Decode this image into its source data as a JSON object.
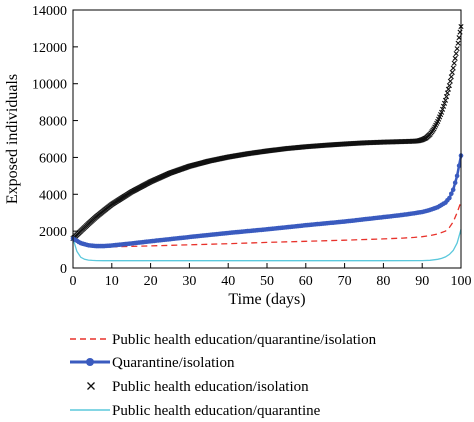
{
  "chart_data": {
    "type": "line",
    "title": "",
    "xlabel": "Time (days)",
    "ylabel": "Exposed individuals",
    "xlim": [
      0,
      100
    ],
    "ylim": [
      0,
      14000
    ],
    "x_ticks": [
      0,
      10,
      20,
      30,
      40,
      50,
      60,
      70,
      80,
      90,
      100
    ],
    "y_ticks": [
      0,
      2000,
      4000,
      6000,
      8000,
      10000,
      12000,
      14000
    ],
    "grid": false,
    "legend_placement": "below",
    "series": [
      {
        "name": "Public health education/quarantine/isolation",
        "color": "#e8322b",
        "style": "dashed",
        "marker": "none",
        "x": [
          0,
          2,
          4,
          6,
          8,
          10,
          15,
          20,
          30,
          40,
          50,
          60,
          70,
          80,
          85,
          88,
          90,
          92,
          94,
          96,
          97,
          98,
          99,
          100
        ],
        "y": [
          1600,
          1350,
          1220,
          1170,
          1150,
          1150,
          1170,
          1200,
          1260,
          1320,
          1390,
          1450,
          1510,
          1580,
          1620,
          1660,
          1700,
          1760,
          1850,
          2000,
          2200,
          2500,
          3000,
          3600
        ]
      },
      {
        "name": "Quarantine/isolation",
        "color": "#3a5bbf",
        "style": "solid",
        "marker": "circle",
        "x": [
          0,
          2,
          4,
          6,
          8,
          10,
          15,
          20,
          30,
          40,
          50,
          60,
          70,
          80,
          85,
          88,
          90,
          92,
          94,
          96,
          97,
          98,
          99,
          100
        ],
        "y": [
          1600,
          1350,
          1230,
          1190,
          1190,
          1220,
          1330,
          1450,
          1680,
          1900,
          2100,
          2320,
          2520,
          2760,
          2880,
          2970,
          3040,
          3150,
          3300,
          3550,
          3800,
          4250,
          5000,
          6100
        ]
      },
      {
        "name": "Public health education/isolation",
        "color": "#111111",
        "style": "none",
        "marker": "x",
        "x": [
          0,
          2,
          4,
          6,
          8,
          10,
          15,
          20,
          25,
          30,
          35,
          40,
          45,
          50,
          55,
          60,
          65,
          70,
          75,
          80,
          85,
          88,
          89,
          90,
          91,
          92,
          93,
          94,
          95,
          96,
          97,
          98,
          99,
          100
        ],
        "y": [
          1600,
          2000,
          2400,
          2780,
          3120,
          3450,
          4120,
          4680,
          5150,
          5520,
          5800,
          6020,
          6200,
          6350,
          6480,
          6580,
          6660,
          6730,
          6790,
          6830,
          6860,
          6880,
          6900,
          6960,
          7060,
          7250,
          7550,
          7950,
          8450,
          9100,
          9900,
          10850,
          11900,
          13100
        ]
      },
      {
        "name": "Public health education/quarantine",
        "color": "#5bc8dc",
        "style": "solid",
        "marker": "none",
        "x": [
          0,
          1,
          2,
          3,
          4,
          5,
          6,
          8,
          10,
          20,
          40,
          60,
          80,
          90,
          92,
          94,
          95,
          96,
          97,
          98,
          99,
          100
        ],
        "y": [
          1600,
          900,
          580,
          470,
          430,
          410,
          400,
          395,
          395,
          395,
          395,
          395,
          395,
          400,
          420,
          470,
          520,
          600,
          740,
          950,
          1350,
          2100
        ]
      }
    ]
  }
}
